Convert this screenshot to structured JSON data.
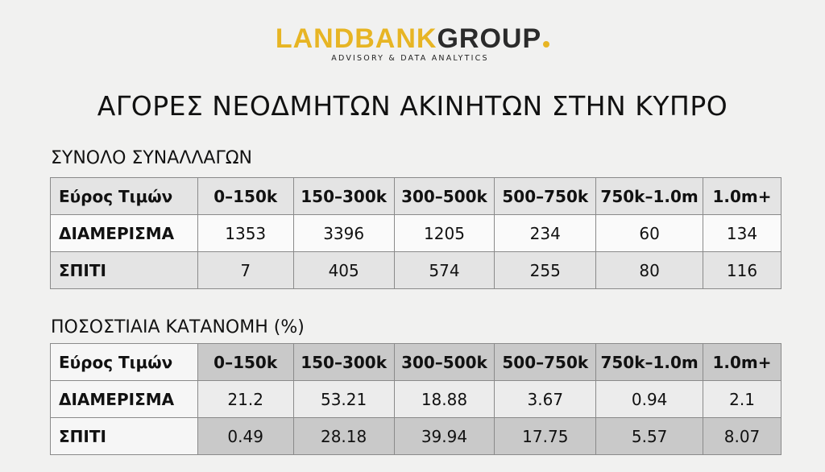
{
  "logo": {
    "part1": "LANDBANK",
    "part2": "GROUP",
    "tagline": "ADVISORY & DATA ANALYTICS",
    "colors": {
      "gold": "#e7b524",
      "dark": "#2b2b2b"
    }
  },
  "title": "ΑΓΟΡΕΣ ΝΕΟΔΜΗΤΩΝ ΑΚΙΝΗΤΩΝ ΣΤΗΝ ΚΥΠΡΟ",
  "table1": {
    "heading": "ΣΥΝΟΛΟ ΣΥΝΑΛΛΑΓΩΝ",
    "columns": [
      "Εύρος Τιμών",
      "0–150k",
      "150–300k",
      "300–500k",
      "500–750k",
      "750k–1.0m",
      "1.0m+"
    ],
    "rows": [
      [
        "ΔΙΑΜΕΡΙΣΜΑ",
        "1353",
        "3396",
        "1205",
        "234",
        "60",
        "134"
      ],
      [
        "ΣΠΙΤΙ",
        "7",
        "405",
        "574",
        "255",
        "80",
        "116"
      ]
    ]
  },
  "table2": {
    "heading": "ΠΟΣΟΣΤΙΑΙΑ ΚΑΤΑΝΟΜΗ (%)",
    "columns": [
      "Εύρος Τιμών",
      "0–150k",
      "150–300k",
      "300–500k",
      "500–750k",
      "750k–1.0m",
      "1.0m+"
    ],
    "rows": [
      [
        "ΔΙΑΜΕΡΙΣΜΑ",
        "21.2",
        "53.21",
        "18.88",
        "3.67",
        "0.94",
        "2.1"
      ],
      [
        "ΣΠΙΤΙ",
        "0.49",
        "28.18",
        "39.94",
        "17.75",
        "5.57",
        "8.07"
      ]
    ]
  }
}
